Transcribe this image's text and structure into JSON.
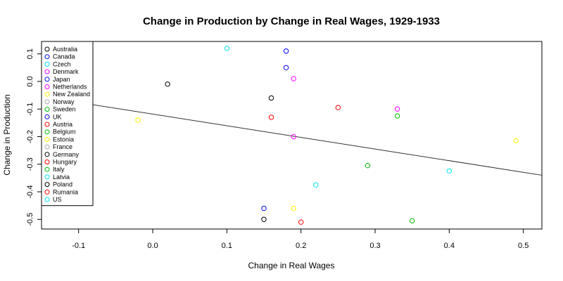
{
  "chart_data": {
    "type": "scatter",
    "title": "Change in Production by Change in Real Wages, 1929-1933",
    "xlabel": "Change in Real Wages",
    "ylabel": "Change in Production",
    "xlim": [
      -0.15,
      0.525
    ],
    "ylim": [
      -0.535,
      0.145
    ],
    "xticks": [
      "-0.1",
      "0.0",
      "0.1",
      "0.2",
      "0.3",
      "0.4",
      "0.5"
    ],
    "xtick_values": [
      -0.1,
      0.0,
      0.1,
      0.2,
      0.3,
      0.4,
      0.5
    ],
    "yticks": [
      "-0.5",
      "-0.4",
      "-0.3",
      "-0.2",
      "-0.1",
      "0.0",
      "0.1"
    ],
    "ytick_values": [
      -0.5,
      -0.4,
      -0.3,
      -0.2,
      -0.1,
      0.0,
      0.1
    ],
    "grid": false,
    "legend_position": "top-left",
    "marker": "open-circle",
    "legend": [
      {
        "name": "Australia",
        "color": "#000000"
      },
      {
        "name": "Canada",
        "color": "#0000ff"
      },
      {
        "name": "Czech",
        "color": "#00e5ee"
      },
      {
        "name": "Denmark",
        "color": "#ff00ff"
      },
      {
        "name": "Japan",
        "color": "#0000ff"
      },
      {
        "name": "Netherlands",
        "color": "#ff00ff"
      },
      {
        "name": "New Zealand",
        "color": "#ffee00"
      },
      {
        "name": "Norway",
        "color": "#aaaaaa"
      },
      {
        "name": "Sweden",
        "color": "#00bb00"
      },
      {
        "name": "UK",
        "color": "#0000ff"
      },
      {
        "name": "Austria",
        "color": "#ff0000"
      },
      {
        "name": "Belgium",
        "color": "#00bb00"
      },
      {
        "name": "Estonia",
        "color": "#ffee00"
      },
      {
        "name": "France",
        "color": "#aaaaaa"
      },
      {
        "name": "Germany",
        "color": "#000000"
      },
      {
        "name": "Hungary",
        "color": "#ff0000"
      },
      {
        "name": "Italy",
        "color": "#00bb00"
      },
      {
        "name": "Latvia",
        "color": "#00e5ee"
      },
      {
        "name": "Poland",
        "color": "#000000"
      },
      {
        "name": "Rumania",
        "color": "#ff0000"
      },
      {
        "name": "US",
        "color": "#00e5ee"
      }
    ],
    "points": [
      {
        "x": 0.1,
        "y": 0.12,
        "color": "#00e5ee"
      },
      {
        "x": 0.18,
        "y": 0.11,
        "color": "#0000ff"
      },
      {
        "x": 0.18,
        "y": 0.05,
        "color": "#0000ff"
      },
      {
        "x": 0.19,
        "y": 0.01,
        "color": "#ff00ff"
      },
      {
        "x": 0.02,
        "y": -0.01,
        "color": "#000000"
      },
      {
        "x": 0.16,
        "y": -0.06,
        "color": "#000000"
      },
      {
        "x": 0.25,
        "y": -0.095,
        "color": "#ff0000"
      },
      {
        "x": 0.16,
        "y": -0.13,
        "color": "#ff0000"
      },
      {
        "x": 0.33,
        "y": -0.1,
        "color": "#ff00ff"
      },
      {
        "x": 0.33,
        "y": -0.125,
        "color": "#00bb00"
      },
      {
        "x": -0.02,
        "y": -0.14,
        "color": "#ffee00"
      },
      {
        "x": 0.19,
        "y": -0.2,
        "color": "#ff00ff"
      },
      {
        "x": 0.49,
        "y": -0.215,
        "color": "#ffee00"
      },
      {
        "x": 0.29,
        "y": -0.305,
        "color": "#00bb00"
      },
      {
        "x": 0.4,
        "y": -0.325,
        "color": "#00e5ee"
      },
      {
        "x": 0.22,
        "y": -0.375,
        "color": "#00e5ee"
      },
      {
        "x": 0.15,
        "y": -0.46,
        "color": "#0000ff"
      },
      {
        "x": 0.19,
        "y": -0.46,
        "color": "#ffee00"
      },
      {
        "x": 0.15,
        "y": -0.5,
        "color": "#000000"
      },
      {
        "x": 0.2,
        "y": -0.51,
        "color": "#ff0000"
      },
      {
        "x": 0.35,
        "y": -0.505,
        "color": "#00bb00"
      }
    ],
    "regression_line": {
      "x_start": -0.15,
      "y_start": -0.055,
      "x_end": 0.525,
      "y_end": -0.34
    }
  }
}
